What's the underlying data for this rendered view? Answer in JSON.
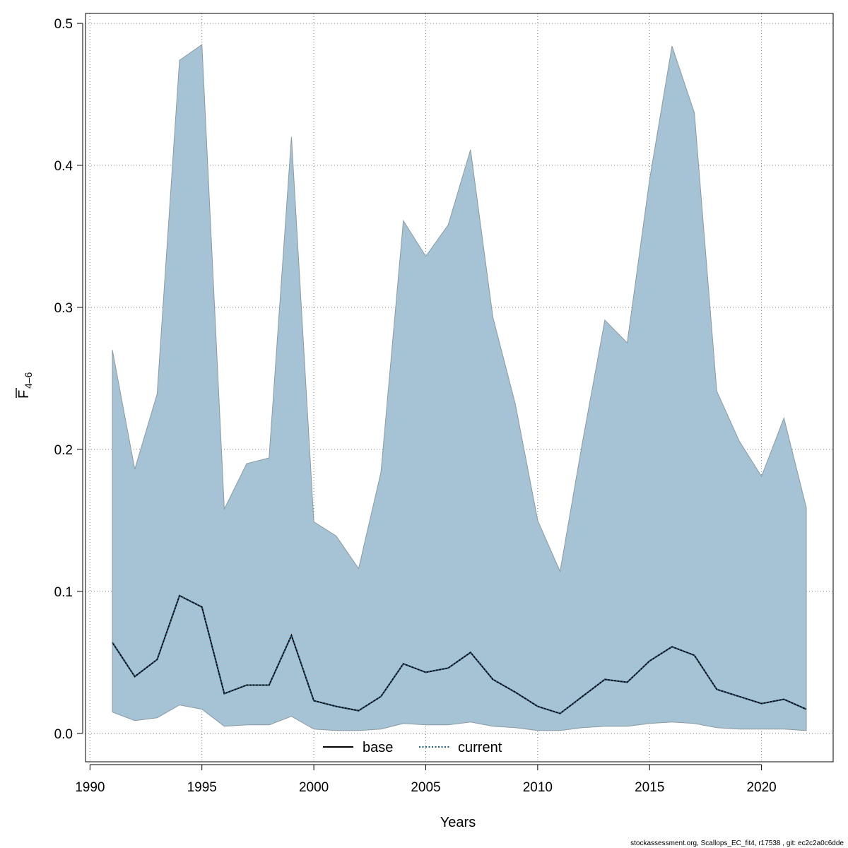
{
  "chart_data": {
    "type": "area",
    "xlabel": "Years",
    "ylabel": "F",
    "ylabel_subscript": "4–6",
    "xlim": [
      1989.8,
      2023.2
    ],
    "ylim": [
      -0.02,
      0.507
    ],
    "x_ticks": [
      1990,
      1995,
      2000,
      2005,
      2010,
      2015,
      2020
    ],
    "x_tick_labels": [
      "1990",
      "1995",
      "2000",
      "2005",
      "2010",
      "2015",
      "2020"
    ],
    "y_ticks": [
      0.0,
      0.1,
      0.2,
      0.3,
      0.4,
      0.5
    ],
    "y_tick_labels": [
      "0.0",
      "0.1",
      "0.2",
      "0.3",
      "0.4",
      "0.5"
    ],
    "grid": true,
    "x": [
      1991,
      1992,
      1993,
      1994,
      1995,
      1996,
      1997,
      1998,
      1999,
      2000,
      2001,
      2002,
      2003,
      2004,
      2005,
      2006,
      2007,
      2008,
      2009,
      2010,
      2011,
      2012,
      2013,
      2014,
      2015,
      2016,
      2017,
      2018,
      2019,
      2020,
      2021,
      2022
    ],
    "band": {
      "upper": [
        0.27,
        0.186,
        0.239,
        0.474,
        0.485,
        0.158,
        0.19,
        0.194,
        0.42,
        0.149,
        0.139,
        0.116,
        0.184,
        0.361,
        0.336,
        0.358,
        0.411,
        0.293,
        0.232,
        0.15,
        0.114,
        0.205,
        0.291,
        0.275,
        0.39,
        0.484,
        0.437,
        0.241,
        0.206,
        0.181,
        0.222,
        0.159
      ],
      "lower": [
        0.015,
        0.009,
        0.011,
        0.02,
        0.017,
        0.005,
        0.006,
        0.006,
        0.012,
        0.003,
        0.002,
        0.002,
        0.003,
        0.007,
        0.006,
        0.006,
        0.008,
        0.005,
        0.004,
        0.002,
        0.002,
        0.004,
        0.005,
        0.005,
        0.007,
        0.008,
        0.007,
        0.004,
        0.003,
        0.003,
        0.003,
        0.002
      ],
      "color": "#a5c3d5",
      "edge_color": "#8a9aa3"
    },
    "series": [
      {
        "name": "base",
        "style": "solid",
        "color": "#000000",
        "values": [
          0.064,
          0.04,
          0.052,
          0.097,
          0.089,
          0.028,
          0.034,
          0.034,
          0.069,
          0.023,
          0.019,
          0.016,
          0.026,
          0.049,
          0.043,
          0.046,
          0.057,
          0.038,
          0.029,
          0.019,
          0.014,
          0.026,
          0.038,
          0.036,
          0.051,
          0.061,
          0.055,
          0.031,
          0.026,
          0.021,
          0.024,
          0.017
        ]
      },
      {
        "name": "current",
        "style": "dotted",
        "color": "#1f5f7f",
        "values": [
          0.064,
          0.04,
          0.052,
          0.097,
          0.089,
          0.028,
          0.034,
          0.034,
          0.069,
          0.023,
          0.019,
          0.016,
          0.026,
          0.049,
          0.043,
          0.046,
          0.057,
          0.038,
          0.029,
          0.019,
          0.014,
          0.026,
          0.038,
          0.036,
          0.051,
          0.061,
          0.055,
          0.031,
          0.026,
          0.021,
          0.024,
          0.017
        ]
      }
    ],
    "legend": {
      "placement": "bottom-center",
      "entries": [
        "base",
        "current"
      ]
    }
  },
  "footer": {
    "text": "stockassessment.org, Scallops_EC_fit4, r17538 , git: ec2c2a0c6dde"
  }
}
